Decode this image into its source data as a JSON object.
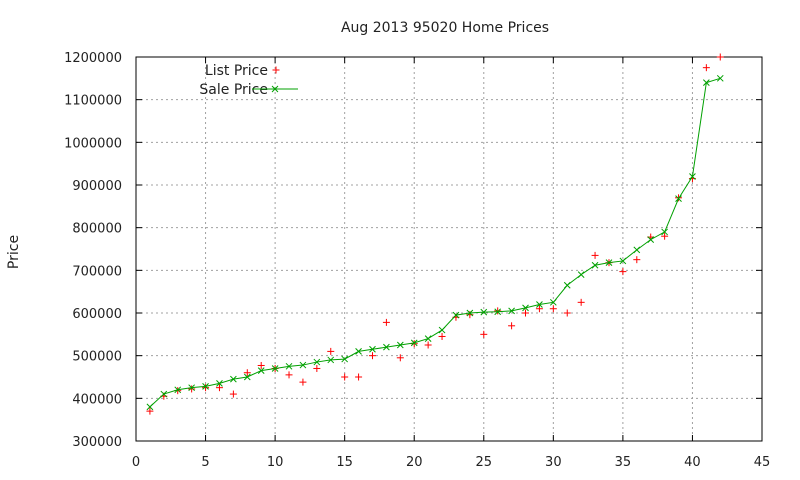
{
  "chart_data": {
    "type": "scatter",
    "title": "Aug 2013 95020 Home Prices",
    "xlabel": "",
    "ylabel": "Price",
    "xlim": [
      0,
      45
    ],
    "ylim": [
      300000,
      1200000
    ],
    "x_ticks": [
      0,
      5,
      10,
      15,
      20,
      25,
      30,
      35,
      40,
      45
    ],
    "y_ticks": [
      300000,
      400000,
      500000,
      600000,
      700000,
      800000,
      900000,
      1000000,
      1100000,
      1200000
    ],
    "grid": true,
    "legend_position": "top-left",
    "series": [
      {
        "name": "List Price",
        "style": "points",
        "marker": "plus",
        "color": "#ff0000",
        "x": [
          1,
          2,
          3,
          4,
          5,
          6,
          7,
          8,
          9,
          10,
          11,
          12,
          13,
          14,
          15,
          16,
          17,
          18,
          19,
          20,
          21,
          22,
          23,
          24,
          25,
          26,
          27,
          28,
          29,
          30,
          31,
          32,
          33,
          34,
          35,
          36,
          37,
          38,
          39,
          40,
          41,
          42
        ],
        "values": [
          370000,
          405000,
          418000,
          422000,
          425000,
          425000,
          410000,
          460000,
          477000,
          470000,
          455000,
          438000,
          470000,
          510000,
          450000,
          450000,
          500000,
          578000,
          495000,
          528000,
          525000,
          545000,
          590000,
          596000,
          550000,
          605000,
          570000,
          600000,
          610000,
          610000,
          600000,
          625000,
          735000,
          718000,
          697000,
          725000,
          778000,
          780000,
          870000,
          915000,
          1175000,
          1200000
        ]
      },
      {
        "name": "Sale Price",
        "style": "linespoints",
        "marker": "cross",
        "color": "#00a000",
        "x": [
          1,
          2,
          3,
          4,
          5,
          6,
          7,
          8,
          9,
          10,
          11,
          12,
          13,
          14,
          15,
          16,
          17,
          18,
          19,
          20,
          21,
          22,
          23,
          24,
          25,
          26,
          27,
          28,
          29,
          30,
          31,
          32,
          33,
          34,
          35,
          36,
          37,
          38,
          39,
          40,
          41,
          42
        ],
        "values": [
          380000,
          410000,
          420000,
          425000,
          428000,
          435000,
          445000,
          450000,
          465000,
          470000,
          475000,
          478000,
          485000,
          490000,
          492000,
          510000,
          515000,
          520000,
          525000,
          530000,
          540000,
          560000,
          595000,
          600000,
          602000,
          603000,
          605000,
          612000,
          620000,
          625000,
          665000,
          690000,
          712000,
          718000,
          722000,
          748000,
          772000,
          790000,
          868000,
          920000,
          1140000,
          1150000
        ]
      }
    ]
  }
}
